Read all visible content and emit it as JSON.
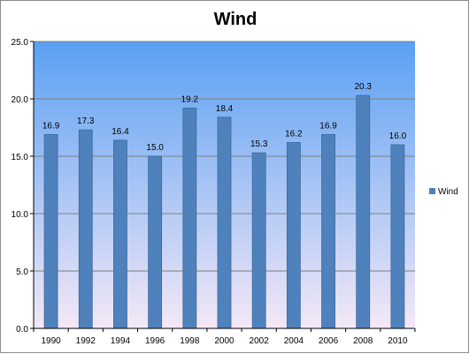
{
  "chart_data": {
    "type": "bar",
    "title": "Wind",
    "categories": [
      "1990",
      "1992",
      "1994",
      "1996",
      "1998",
      "2000",
      "2002",
      "2004",
      "2006",
      "2008",
      "2010"
    ],
    "series": [
      {
        "name": "Wind",
        "values": [
          16.9,
          17.3,
          16.4,
          15.0,
          19.2,
          18.4,
          15.3,
          16.2,
          16.9,
          20.3,
          16.0
        ]
      }
    ],
    "data_labels": [
      "16.9",
      "17.3",
      "16.4",
      "15.0",
      "19.2",
      "18.4",
      "15.3",
      "16.2",
      "16.9",
      "20.3",
      "16.0"
    ],
    "ylim": [
      0,
      25
    ],
    "yticks": [
      "0.0",
      "5.0",
      "10.0",
      "15.0",
      "20.0",
      "25.0"
    ],
    "grid": true,
    "legend_position": "right",
    "colors": {
      "bar": "#4f81bd",
      "bar_edge": "#3a6a9e",
      "plot_top": "#5aa0f4",
      "plot_bottom": "#f4e8f6",
      "grid": "#7f7f7f"
    }
  }
}
